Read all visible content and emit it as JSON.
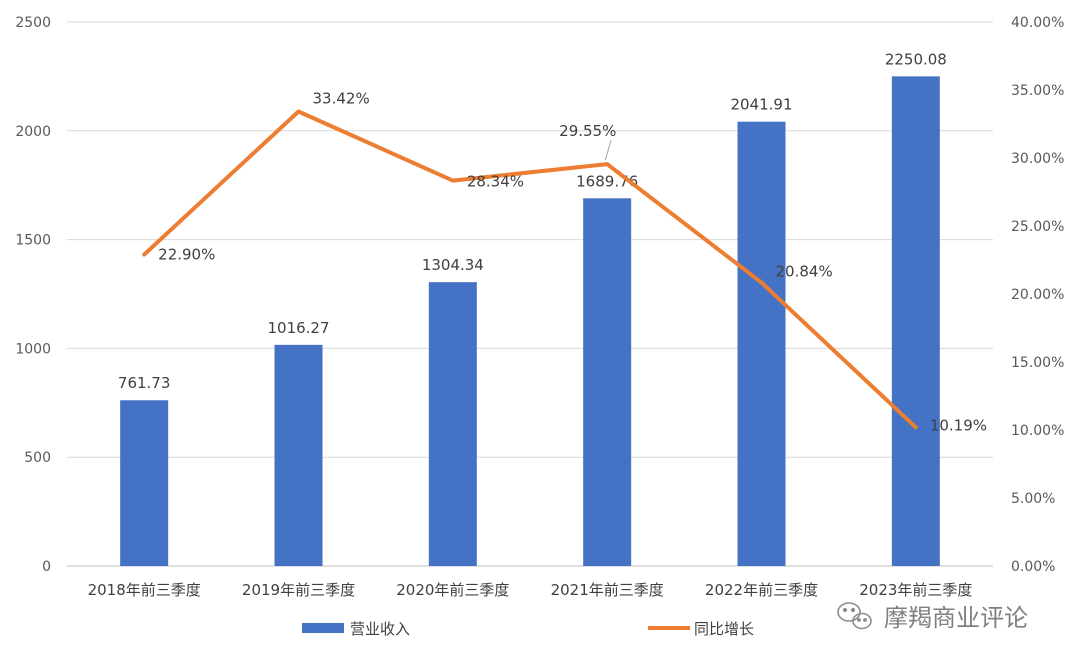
{
  "chart_data": {
    "type": "bar",
    "categories": [
      "2018年前三季度",
      "2019年前三季度",
      "2020年前三季度",
      "2021年前三季度",
      "2022年前三季度",
      "2023年前三季度"
    ],
    "series": [
      {
        "name": "营业收入",
        "type": "bar",
        "axis": "left",
        "color": "#4472c4",
        "values": [
          761.73,
          1016.27,
          1304.34,
          1689.76,
          2041.91,
          2250.08
        ],
        "labels": [
          "761.73",
          "1016.27",
          "1304.34",
          "1689.76",
          "2041.91",
          "2250.08"
        ]
      },
      {
        "name": "同比增长",
        "type": "line",
        "axis": "right",
        "color": "#ed7d31",
        "values": [
          22.9,
          33.42,
          28.34,
          29.55,
          20.84,
          10.19
        ],
        "labels": [
          "22.90%",
          "33.42%",
          "28.34%",
          "29.55%",
          "20.84%",
          "10.19%"
        ]
      }
    ],
    "y_left": {
      "min": 0,
      "max": 2500,
      "step": 500,
      "ticks": [
        "0",
        "500",
        "1000",
        "1500",
        "2000",
        "2500"
      ]
    },
    "y_right": {
      "min": 0,
      "max": 40,
      "step": 5,
      "ticks": [
        "0.00%",
        "5.00%",
        "10.00%",
        "15.00%",
        "20.00%",
        "25.00%",
        "30.00%",
        "35.00%",
        "40.00%"
      ]
    },
    "grid": true,
    "legend_position": "bottom"
  },
  "watermark": {
    "text": "摩羯商业评论",
    "icon": "wechat-icon"
  }
}
